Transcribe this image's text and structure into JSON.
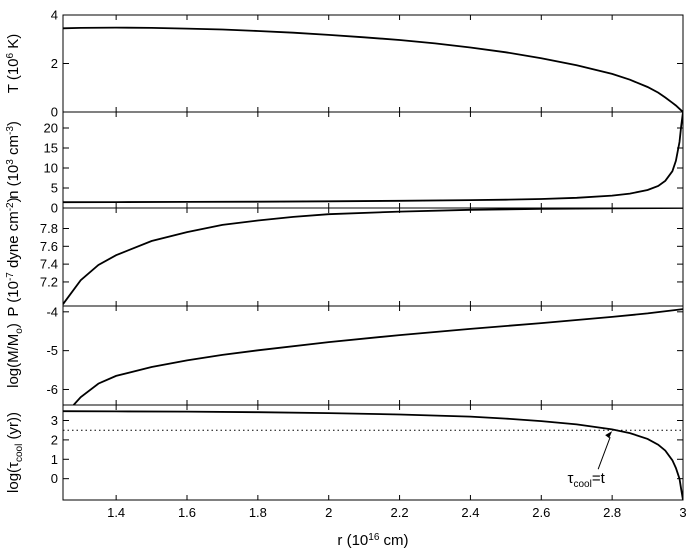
{
  "chart_data": [
    {
      "type": "line",
      "ylabel": "T (10^6 K)",
      "xlim": [
        1.25,
        3.0
      ],
      "ylim": [
        0,
        4
      ],
      "yticks": [
        0,
        2,
        4
      ],
      "series": [
        {
          "x": [
            1.25,
            1.3,
            1.4,
            1.5,
            1.6,
            1.7,
            1.8,
            1.9,
            2.0,
            2.1,
            2.2,
            2.3,
            2.4,
            2.5,
            2.6,
            2.7,
            2.8,
            2.85,
            2.9,
            2.93,
            2.95,
            2.97,
            2.98,
            2.99,
            3.0
          ],
          "y": [
            3.45,
            3.47,
            3.48,
            3.47,
            3.44,
            3.4,
            3.34,
            3.27,
            3.18,
            3.08,
            2.97,
            2.83,
            2.66,
            2.46,
            2.22,
            1.93,
            1.57,
            1.33,
            1.03,
            0.8,
            0.6,
            0.38,
            0.27,
            0.13,
            0.0
          ]
        }
      ]
    },
    {
      "type": "line",
      "ylabel": "n (10^3 cm^-3)",
      "xlim": [
        1.25,
        3.0
      ],
      "ylim": [
        0,
        24
      ],
      "yticks": [
        0,
        5,
        10,
        15,
        20
      ],
      "series": [
        {
          "x": [
            1.25,
            1.4,
            1.6,
            1.8,
            2.0,
            2.2,
            2.4,
            2.5,
            2.6,
            2.7,
            2.8,
            2.85,
            2.9,
            2.93,
            2.95,
            2.97,
            2.98,
            2.99,
            2.995,
            3.0
          ],
          "y": [
            1.45,
            1.47,
            1.52,
            1.58,
            1.68,
            1.8,
            1.97,
            2.08,
            2.26,
            2.55,
            3.1,
            3.6,
            4.5,
            5.5,
            6.8,
            9.2,
            11.8,
            16.5,
            20.5,
            24.0
          ]
        }
      ]
    },
    {
      "type": "line",
      "ylabel": "P (10^-7 dyne cm^-2)",
      "xlim": [
        1.25,
        3.0
      ],
      "ylim": [
        6.93,
        8.03
      ],
      "yticks": [
        7.2,
        7.4,
        7.6,
        7.8
      ],
      "series": [
        {
          "x": [
            1.25,
            1.3,
            1.35,
            1.4,
            1.5,
            1.6,
            1.7,
            1.8,
            1.9,
            2.0,
            2.2,
            2.4,
            2.6,
            2.8,
            3.0
          ],
          "y": [
            6.95,
            7.22,
            7.39,
            7.5,
            7.66,
            7.76,
            7.84,
            7.89,
            7.93,
            7.96,
            7.99,
            8.01,
            8.02,
            8.025,
            8.03
          ]
        }
      ]
    },
    {
      "type": "line",
      "ylabel": "log(M/Mo)",
      "xlim": [
        1.25,
        3.0
      ],
      "ylim": [
        -6.4,
        -3.85
      ],
      "yticks": [
        -6,
        -5,
        -4
      ],
      "series": [
        {
          "x": [
            1.28,
            1.3,
            1.35,
            1.4,
            1.5,
            1.6,
            1.7,
            1.8,
            2.0,
            2.2,
            2.4,
            2.6,
            2.8,
            2.9,
            3.0
          ],
          "y": [
            -6.4,
            -6.2,
            -5.85,
            -5.65,
            -5.42,
            -5.25,
            -5.11,
            -4.99,
            -4.78,
            -4.6,
            -4.44,
            -4.29,
            -4.13,
            -4.04,
            -3.93
          ]
        }
      ]
    },
    {
      "type": "line",
      "ylabel": "log(τcool (yr))",
      "xlabel": "r (10^16 cm)",
      "xlim": [
        1.25,
        3.0
      ],
      "ylim": [
        -1.1,
        3.8
      ],
      "xticks": [
        1.4,
        1.6,
        1.8,
        2.0,
        2.2,
        2.4,
        2.6,
        2.8,
        3.0
      ],
      "xtick_labels": [
        "1.4",
        "1.6",
        "1.8",
        "2",
        "2.2",
        "2.4",
        "2.6",
        "2.8",
        "3"
      ],
      "yticks": [
        0,
        1,
        2,
        3
      ],
      "series": [
        {
          "x": [
            1.25,
            1.4,
            1.6,
            1.8,
            2.0,
            2.2,
            2.4,
            2.5,
            2.6,
            2.7,
            2.8,
            2.85,
            2.9,
            2.93,
            2.95,
            2.97,
            2.98,
            2.99,
            2.995,
            3.0
          ],
          "y": [
            3.48,
            3.47,
            3.46,
            3.43,
            3.38,
            3.31,
            3.2,
            3.1,
            2.97,
            2.8,
            2.54,
            2.35,
            2.05,
            1.75,
            1.45,
            0.95,
            0.55,
            0.0,
            -0.55,
            -1.1
          ]
        },
        {
          "style": "dotted",
          "x": [
            1.25,
            3.0
          ],
          "y": [
            2.5,
            2.5
          ]
        }
      ],
      "annotation": {
        "text": "τcool=t",
        "x": 2.8,
        "y": 2.45
      }
    }
  ]
}
